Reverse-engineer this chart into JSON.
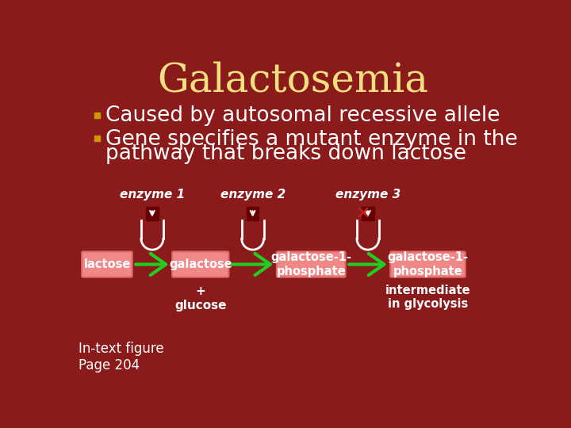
{
  "title": "Galactosemia",
  "title_color": "#F0E080",
  "title_fontsize": 36,
  "bg_color": "#8B1A1A",
  "bullet_color": "#CC9900",
  "bullet_text_color": "#FFFFFF",
  "bullet1": "Caused by autosomal recessive allele",
  "bullet2_line1": "Gene specifies a mutant enzyme in the",
  "bullet2_line2": "pathway that breaks down lactose",
  "bullet_fontsize": 19,
  "box_fill": "#F08888",
  "box_edge": "#CC4444",
  "box_text_color": "#FFFFFF",
  "arrow_color": "#22CC22",
  "enzyme_label_color": "#FFFFFF",
  "enzyme_label_fontsize": 11,
  "box1_label": "lactose",
  "box2_label": "galactose",
  "box2_sublabel": "+\nglucose",
  "box3_label": "galactose-1-\nphosphate",
  "box4_label": "galactose-1-\nphosphate",
  "enzyme_labels": [
    "enzyme 1",
    "enzyme 2",
    "enzyme 3"
  ],
  "note_text": "intermediate\nin glycolysis",
  "footnote": "In-text figure\nPage 204",
  "footnote_color": "#FFFFFF",
  "footnote_fontsize": 12,
  "enzyme_rect_color": "#660000",
  "enzyme_x_color": "#CC2222"
}
